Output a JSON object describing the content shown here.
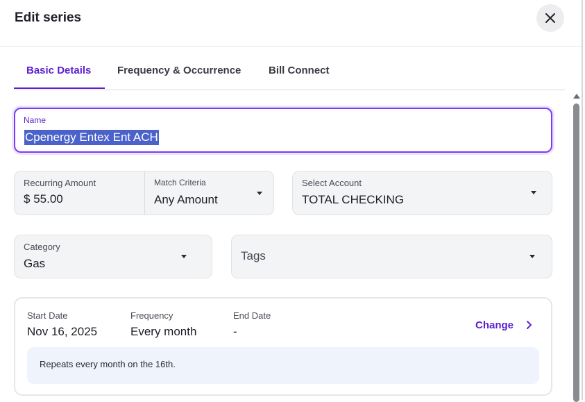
{
  "dialog": {
    "title": "Edit series",
    "close_icon": "close-icon"
  },
  "tabs": [
    {
      "label": "Basic Details",
      "active": true
    },
    {
      "label": "Frequency & Occurrence",
      "active": false
    },
    {
      "label": "Bill Connect",
      "active": false
    }
  ],
  "name": {
    "label": "Name",
    "value": "Cpenergy Entex Ent ACH"
  },
  "recurring_amount": {
    "label": "Recurring Amount",
    "currency": "$",
    "value": "55.00"
  },
  "match_criteria": {
    "label": "Match Criteria",
    "value": "Any Amount"
  },
  "account": {
    "label": "Select Account",
    "value": "TOTAL CHECKING"
  },
  "category": {
    "label": "Category",
    "value": "Gas"
  },
  "tags": {
    "placeholder": "Tags"
  },
  "schedule": {
    "start_date": {
      "label": "Start Date",
      "value": "Nov 16, 2025"
    },
    "frequency": {
      "label": "Frequency",
      "value": "Every month"
    },
    "end_date": {
      "label": "End Date",
      "value": "-"
    },
    "change_label": "Change",
    "repeats_text": "Repeats every month on the 16th."
  },
  "colors": {
    "accent": "#5a1fd1",
    "field_bg": "#f3f4f6",
    "info_bg": "#eef3fc"
  }
}
